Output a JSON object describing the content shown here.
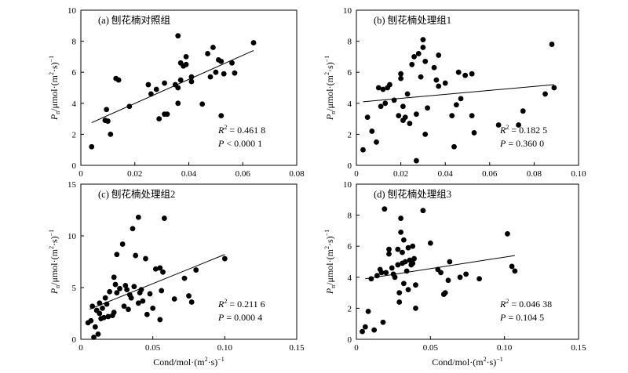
{
  "chart_data": [
    {
      "type": "scatter",
      "title": "(a) 刨花楠对照组",
      "xlim": [
        0,
        0.08
      ],
      "ylim": [
        0,
        10
      ],
      "xticks": [
        "0",
        "0.02",
        "0.04",
        "0.06",
        "0.08"
      ],
      "yticks": [
        "0",
        "2",
        "4",
        "6",
        "8",
        "10"
      ],
      "r2": "0.461 8",
      "p": "< 0.000 1",
      "fit": {
        "x": [
          0.004,
          0.064
        ],
        "y": [
          2.75,
          7.4
        ]
      },
      "points": [
        [
          0.004,
          1.2
        ],
        [
          0.009,
          2.9
        ],
        [
          0.0095,
          3.6
        ],
        [
          0.01,
          2.85
        ],
        [
          0.011,
          2.0
        ],
        [
          0.013,
          5.6
        ],
        [
          0.014,
          5.5
        ],
        [
          0.018,
          3.8
        ],
        [
          0.025,
          5.2
        ],
        [
          0.026,
          4.6
        ],
        [
          0.028,
          4.9
        ],
        [
          0.029,
          3.0
        ],
        [
          0.031,
          5.3
        ],
        [
          0.031,
          3.3
        ],
        [
          0.032,
          3.3
        ],
        [
          0.035,
          5.2
        ],
        [
          0.036,
          5.0
        ],
        [
          0.036,
          4.0
        ],
        [
          0.036,
          8.35
        ],
        [
          0.037,
          6.6
        ],
        [
          0.037,
          5.5
        ],
        [
          0.038,
          6.4
        ],
        [
          0.039,
          7.0
        ],
        [
          0.039,
          6.5
        ],
        [
          0.041,
          5.7
        ],
        [
          0.041,
          5.4
        ],
        [
          0.045,
          3.95
        ],
        [
          0.047,
          7.2
        ],
        [
          0.048,
          5.7
        ],
        [
          0.049,
          7.6
        ],
        [
          0.05,
          6.0
        ],
        [
          0.051,
          6.8
        ],
        [
          0.052,
          6.7
        ],
        [
          0.053,
          5.9
        ],
        [
          0.052,
          3.2
        ],
        [
          0.056,
          6.6
        ],
        [
          0.057,
          5.95
        ],
        [
          0.064,
          7.9
        ]
      ]
    },
    {
      "type": "scatter",
      "title": "(b) 刨花楠处理组1",
      "xlim": [
        0,
        0.1
      ],
      "ylim": [
        0,
        10
      ],
      "xticks": [
        "0",
        "0.02",
        "0.04",
        "0.06",
        "0.08",
        "0.10"
      ],
      "yticks": [
        "0",
        "2",
        "4",
        "6",
        "8",
        "10"
      ],
      "r2": "0.182 5",
      "p": "= 0.360 0",
      "fit": {
        "x": [
          0.003,
          0.089
        ],
        "y": [
          4.1,
          5.2
        ]
      },
      "points": [
        [
          0.003,
          1.0
        ],
        [
          0.005,
          3.1
        ],
        [
          0.007,
          2.2
        ],
        [
          0.009,
          1.5
        ],
        [
          0.01,
          5.0
        ],
        [
          0.011,
          3.8
        ],
        [
          0.012,
          4.9
        ],
        [
          0.013,
          4.0
        ],
        [
          0.014,
          5.0
        ],
        [
          0.015,
          5.2
        ],
        [
          0.017,
          4.2
        ],
        [
          0.019,
          3.2
        ],
        [
          0.02,
          5.6
        ],
        [
          0.02,
          5.9
        ],
        [
          0.021,
          2.9
        ],
        [
          0.021,
          3.8
        ],
        [
          0.022,
          3.1
        ],
        [
          0.023,
          4.6
        ],
        [
          0.024,
          2.7
        ],
        [
          0.025,
          6.5
        ],
        [
          0.026,
          7.0
        ],
        [
          0.027,
          3.3
        ],
        [
          0.027,
          0.3
        ],
        [
          0.028,
          7.2
        ],
        [
          0.029,
          5.7
        ],
        [
          0.03,
          7.6
        ],
        [
          0.03,
          8.1
        ],
        [
          0.031,
          6.7
        ],
        [
          0.031,
          2.0
        ],
        [
          0.032,
          3.7
        ],
        [
          0.035,
          6.3
        ],
        [
          0.036,
          5.5
        ],
        [
          0.037,
          7.1
        ],
        [
          0.037,
          5.1
        ],
        [
          0.04,
          5.3
        ],
        [
          0.043,
          3.2
        ],
        [
          0.044,
          1.2
        ],
        [
          0.045,
          3.9
        ],
        [
          0.046,
          6.0
        ],
        [
          0.047,
          4.3
        ],
        [
          0.049,
          5.8
        ],
        [
          0.052,
          5.9
        ],
        [
          0.052,
          3.2
        ],
        [
          0.053,
          2.1
        ],
        [
          0.064,
          2.6
        ],
        [
          0.073,
          2.6
        ],
        [
          0.075,
          3.5
        ],
        [
          0.085,
          4.6
        ],
        [
          0.088,
          7.8
        ],
        [
          0.089,
          5.0
        ]
      ]
    },
    {
      "type": "scatter",
      "title": "(c) 刨花楠处理组2",
      "xlim": [
        0,
        0.15
      ],
      "ylim": [
        0,
        15
      ],
      "xticks": [
        "0",
        "0.05",
        "0.10",
        "0.15"
      ],
      "yticks": [
        "0",
        "5",
        "10",
        "15"
      ],
      "r2": "0.211 6",
      "p": "= 0.000 4",
      "fit": {
        "x": [
          0.006,
          0.1
        ],
        "y": [
          2.9,
          8.2
        ]
      },
      "points": [
        [
          0.005,
          1.6
        ],
        [
          0.007,
          1.8
        ],
        [
          0.008,
          3.2
        ],
        [
          0.009,
          0.2
        ],
        [
          0.01,
          1.2
        ],
        [
          0.011,
          2.8
        ],
        [
          0.012,
          0.5
        ],
        [
          0.013,
          2.5
        ],
        [
          0.013,
          3.5
        ],
        [
          0.014,
          2.0
        ],
        [
          0.015,
          3.0
        ],
        [
          0.016,
          2.1
        ],
        [
          0.017,
          4.0
        ],
        [
          0.018,
          3.4
        ],
        [
          0.019,
          2.2
        ],
        [
          0.02,
          4.6
        ],
        [
          0.022,
          2.3
        ],
        [
          0.023,
          2.6
        ],
        [
          0.023,
          6.0
        ],
        [
          0.024,
          5.3
        ],
        [
          0.025,
          8.2
        ],
        [
          0.025,
          4.5
        ],
        [
          0.027,
          4.9
        ],
        [
          0.029,
          9.2
        ],
        [
          0.03,
          3.2
        ],
        [
          0.031,
          5.2
        ],
        [
          0.032,
          4.8
        ],
        [
          0.033,
          2.9
        ],
        [
          0.034,
          4.3
        ],
        [
          0.035,
          4.0
        ],
        [
          0.036,
          10.7
        ],
        [
          0.037,
          5.1
        ],
        [
          0.038,
          8.1
        ],
        [
          0.04,
          11.8
        ],
        [
          0.04,
          3.5
        ],
        [
          0.041,
          4.5
        ],
        [
          0.042,
          4.8
        ],
        [
          0.043,
          3.7
        ],
        [
          0.045,
          7.8
        ],
        [
          0.046,
          2.4
        ],
        [
          0.048,
          4.4
        ],
        [
          0.05,
          3.0
        ],
        [
          0.052,
          6.8
        ],
        [
          0.055,
          6.9
        ],
        [
          0.055,
          1.9
        ],
        [
          0.056,
          4.7
        ],
        [
          0.057,
          6.5
        ],
        [
          0.058,
          11.7
        ],
        [
          0.065,
          3.9
        ],
        [
          0.072,
          5.9
        ],
        [
          0.075,
          4.2
        ],
        [
          0.077,
          3.6
        ],
        [
          0.08,
          6.7
        ],
        [
          0.1,
          7.8
        ]
      ]
    },
    {
      "type": "scatter",
      "title": "(d) 刨花楠处理组3",
      "xlim": [
        0,
        0.15
      ],
      "ylim": [
        0,
        10
      ],
      "xticks": [
        "0",
        "0.05",
        "0.10",
        "0.15"
      ],
      "yticks": [
        "0",
        "2",
        "4",
        "6",
        "8",
        "10"
      ],
      "r2": "0.046 38",
      "p": "= 0.104 5",
      "fit": {
        "x": [
          0.006,
          0.107
        ],
        "y": [
          3.9,
          5.4
        ]
      },
      "points": [
        [
          0.004,
          0.5
        ],
        [
          0.006,
          0.8
        ],
        [
          0.008,
          1.8
        ],
        [
          0.01,
          3.9
        ],
        [
          0.012,
          0.6
        ],
        [
          0.014,
          4.1
        ],
        [
          0.016,
          4.5
        ],
        [
          0.017,
          4.3
        ],
        [
          0.018,
          1.1
        ],
        [
          0.019,
          8.4
        ],
        [
          0.02,
          4.3
        ],
        [
          0.022,
          5.5
        ],
        [
          0.022,
          5.8
        ],
        [
          0.024,
          4.6
        ],
        [
          0.025,
          4.2
        ],
        [
          0.026,
          4.0
        ],
        [
          0.028,
          5.8
        ],
        [
          0.028,
          4.8
        ],
        [
          0.029,
          3.0
        ],
        [
          0.029,
          2.4
        ],
        [
          0.03,
          7.8
        ],
        [
          0.03,
          6.9
        ],
        [
          0.031,
          5.6
        ],
        [
          0.031,
          4.9
        ],
        [
          0.032,
          6.4
        ],
        [
          0.032,
          3.6
        ],
        [
          0.033,
          5.0
        ],
        [
          0.034,
          4.4
        ],
        [
          0.035,
          5.9
        ],
        [
          0.035,
          3.2
        ],
        [
          0.036,
          5.1
        ],
        [
          0.037,
          4.8
        ],
        [
          0.038,
          6.0
        ],
        [
          0.038,
          4.9
        ],
        [
          0.039,
          5.2
        ],
        [
          0.04,
          3.5
        ],
        [
          0.04,
          2.0
        ],
        [
          0.045,
          8.3
        ],
        [
          0.05,
          6.2
        ],
        [
          0.055,
          4.5
        ],
        [
          0.057,
          4.3
        ],
        [
          0.059,
          2.9
        ],
        [
          0.06,
          3.0
        ],
        [
          0.062,
          3.8
        ],
        [
          0.063,
          5.0
        ],
        [
          0.07,
          4.0
        ],
        [
          0.074,
          4.2
        ],
        [
          0.083,
          3.9
        ],
        [
          0.102,
          6.8
        ],
        [
          0.105,
          4.7
        ],
        [
          0.107,
          4.4
        ]
      ]
    }
  ],
  "labels": {
    "x_axis": "Cond/mol·(m",
    "x_axis_sup": "2",
    "x_axis_mid": "·s)",
    "x_axis_sup2": "−1",
    "y_axis_sym": "P",
    "y_axis_sub": "n",
    "y_axis_unit": "/μmol·(m",
    "y_axis_sup": "2",
    "y_axis_mid": "·s)",
    "y_axis_sup2": "−1",
    "r2_sym": "R",
    "r2_sup": "2",
    "r2_eq": " = ",
    "p_sym": "P"
  }
}
